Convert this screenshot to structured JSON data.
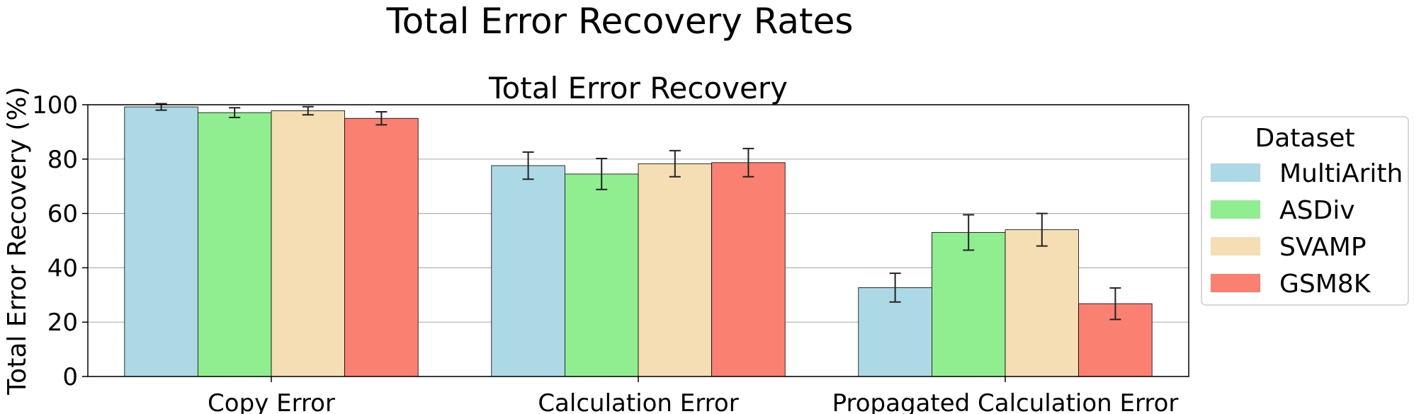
{
  "chart_data": {
    "type": "bar",
    "suptitle": "Total Error Recovery Rates",
    "title": "Total Error Recovery",
    "ylabel": "Total Error Recovery (%)",
    "xlabel": "",
    "ylim": [
      0,
      100
    ],
    "yticks": [
      0,
      20,
      40,
      60,
      80,
      100
    ],
    "grid": "horizontal",
    "categories": [
      "Copy Error",
      "Calculation Error",
      "Propagated Calculation Error"
    ],
    "series": [
      {
        "name": "MultiArith",
        "color": "#add8e6",
        "values": [
          99.2,
          77.6,
          32.7
        ],
        "errors": [
          1.2,
          5.0,
          5.3
        ]
      },
      {
        "name": "ASDiv",
        "color": "#90ee90",
        "values": [
          97.1,
          74.5,
          53.0
        ],
        "errors": [
          1.8,
          5.7,
          6.5
        ]
      },
      {
        "name": "SVAMP",
        "color": "#f5deb3",
        "values": [
          97.8,
          78.3,
          54.0
        ],
        "errors": [
          1.5,
          4.8,
          6.0
        ]
      },
      {
        "name": "GSM8K",
        "color": "#fa8072",
        "values": [
          95.0,
          78.7,
          26.8
        ],
        "errors": [
          2.4,
          5.2,
          5.8
        ]
      }
    ],
    "legend": {
      "title": "Dataset",
      "placement": "outside-right"
    }
  }
}
